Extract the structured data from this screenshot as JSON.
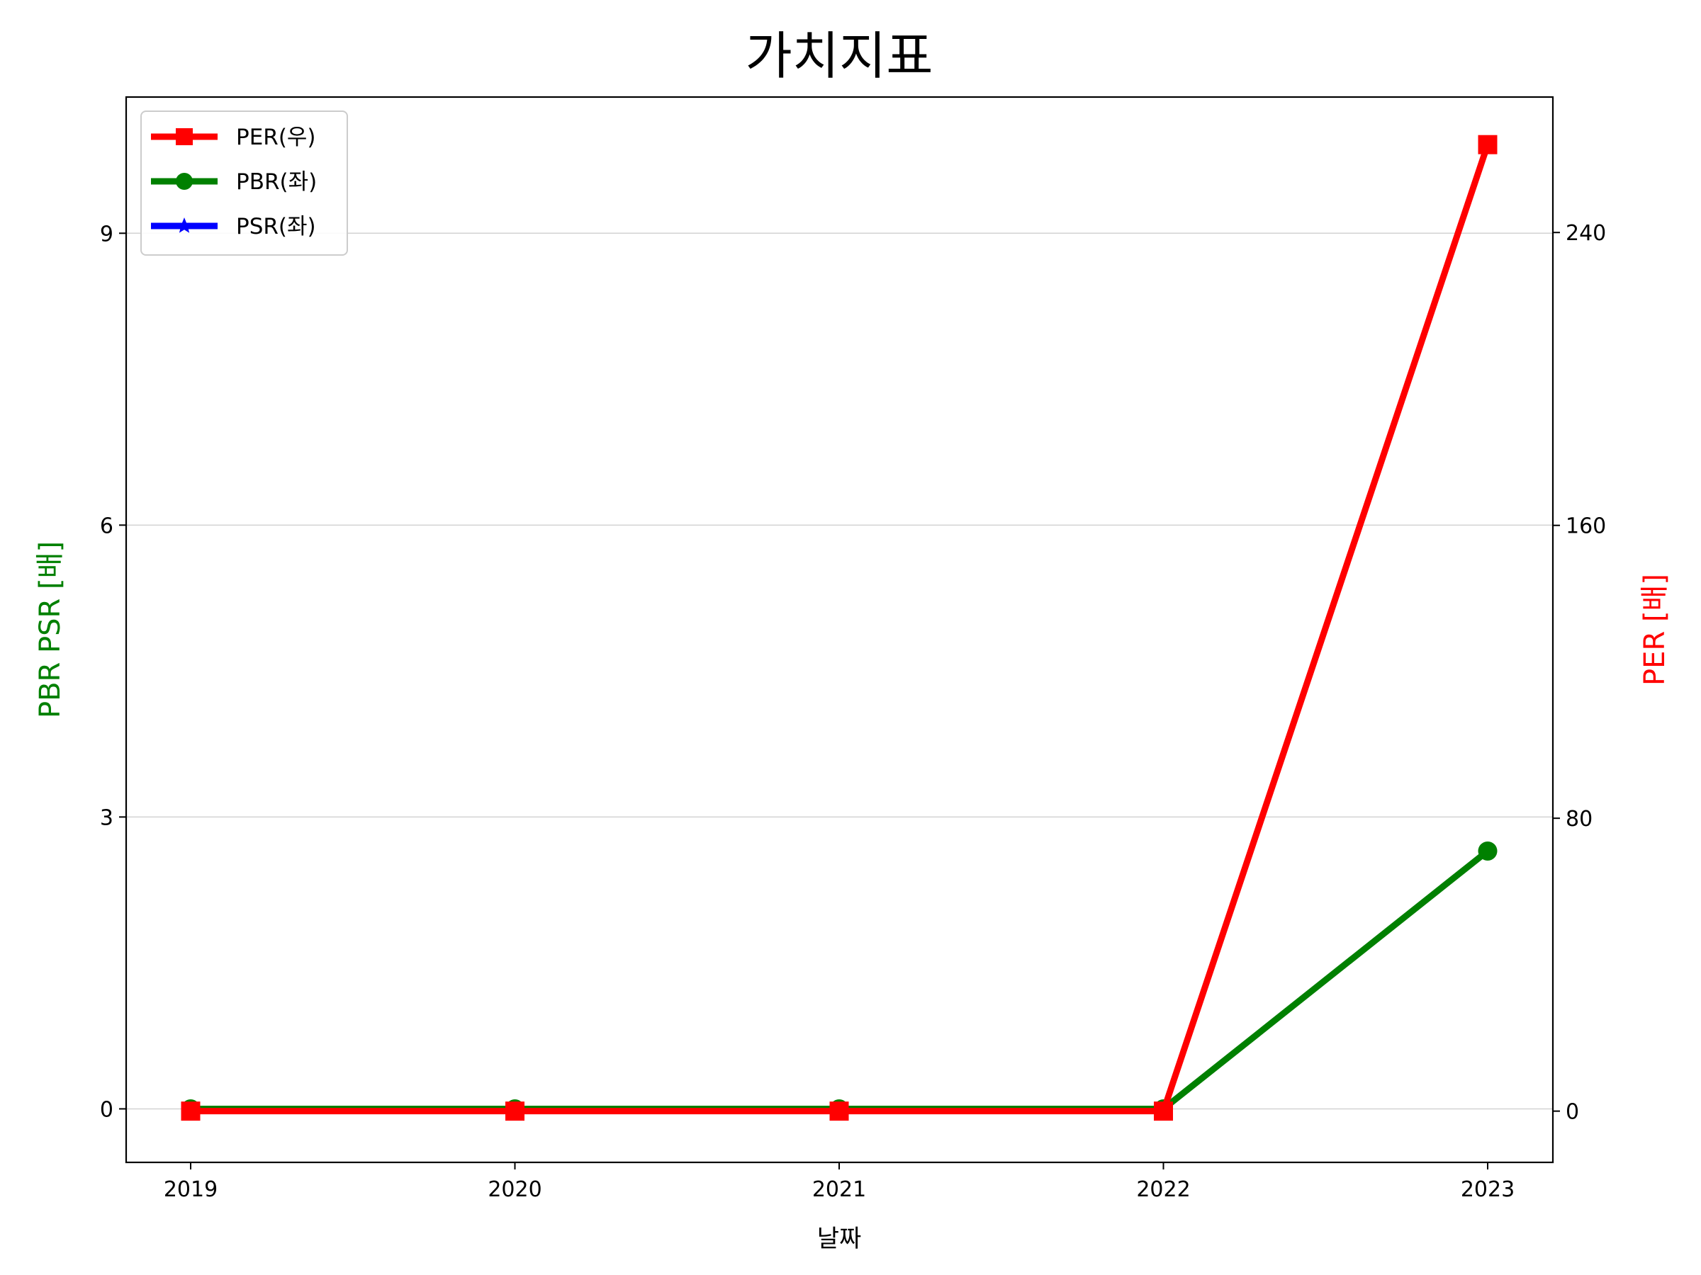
{
  "chart_data": {
    "type": "line",
    "title": "가치지표",
    "xlabel": "날짜",
    "ylabel_left": "PBR PSR [배]",
    "ylabel_right": "PER [배]",
    "categories": [
      "2019",
      "2020",
      "2021",
      "2022",
      "2023"
    ],
    "left_axis": {
      "ticks": [
        0,
        3,
        6,
        9
      ],
      "ylim": [
        -0.55,
        10.4
      ]
    },
    "right_axis": {
      "ticks": [
        0,
        80,
        160,
        240
      ],
      "ylim": [
        -14,
        277
      ]
    },
    "grid": "horizontal",
    "legend_position": "upper left",
    "series": [
      {
        "name": "PER(우)",
        "axis": "right",
        "color": "#ff0000",
        "marker": "square",
        "values": [
          0,
          0,
          0,
          0,
          264
        ]
      },
      {
        "name": "PBR(좌)",
        "axis": "left",
        "color": "#008000",
        "marker": "circle",
        "values": [
          0,
          0,
          0,
          0,
          2.65
        ]
      },
      {
        "name": "PSR(좌)",
        "axis": "left",
        "color": "#0000ff",
        "marker": "star",
        "values": [
          null,
          null,
          null,
          null,
          null
        ]
      }
    ]
  },
  "colors": {
    "left_label": "#008000",
    "right_label": "#ff0000",
    "grid": "#d3d3d3"
  }
}
